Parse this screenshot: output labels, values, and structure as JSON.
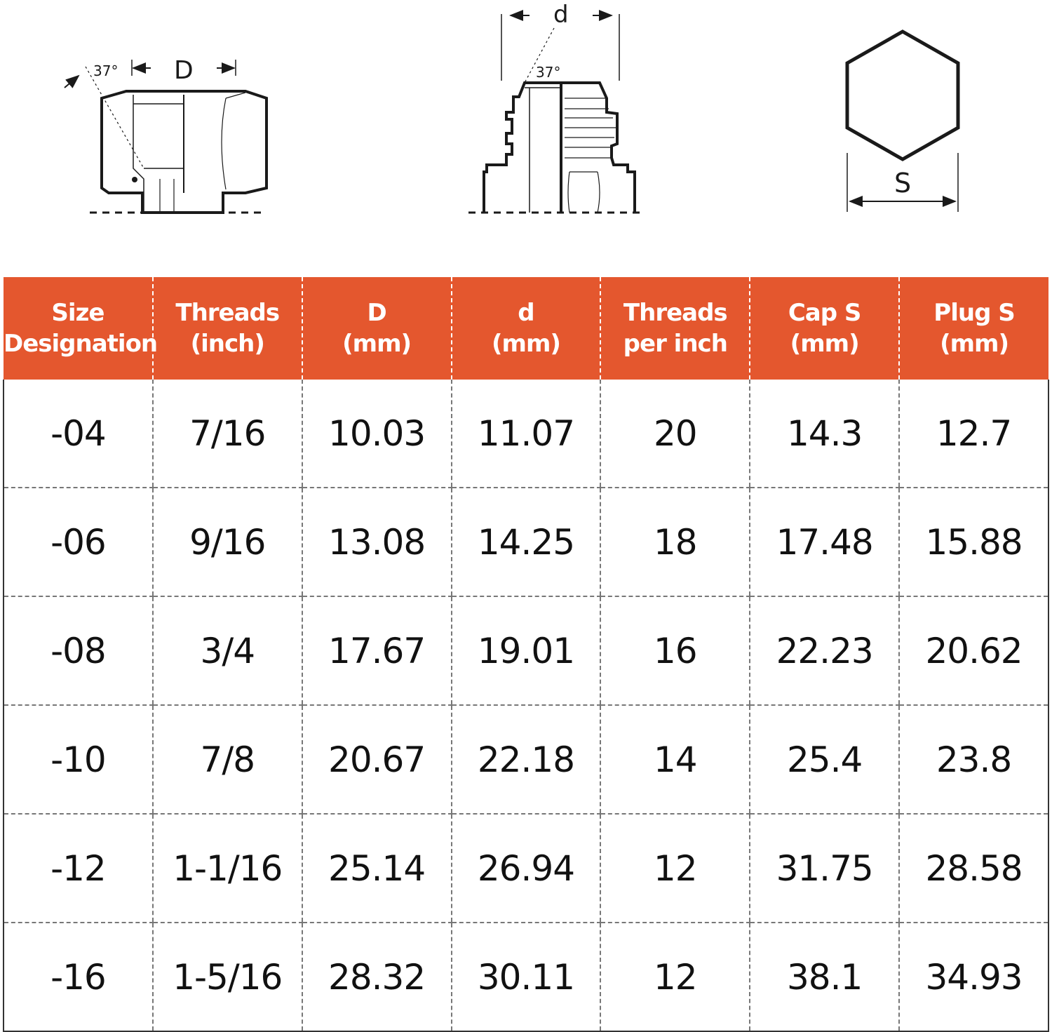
{
  "diagrams": {
    "cap": {
      "angle_label": "37°",
      "dimension_label": "D"
    },
    "plug": {
      "angle_label": "37°",
      "dimension_label": "d"
    },
    "hex": {
      "dimension_label": "S"
    }
  },
  "table": {
    "headers": [
      [
        "Size",
        "Designation"
      ],
      [
        "Threads",
        "(inch)"
      ],
      [
        "D",
        "(mm)"
      ],
      [
        "d",
        "(mm)"
      ],
      [
        "Threads",
        "per inch"
      ],
      [
        "Cap S",
        "(mm)"
      ],
      [
        "Plug S",
        "(mm)"
      ]
    ],
    "rows": [
      [
        "-04",
        "7/16",
        "10.03",
        "11.07",
        "20",
        "14.3",
        "12.7"
      ],
      [
        "-06",
        "9/16",
        "13.08",
        "14.25",
        "18",
        "17.48",
        "15.88"
      ],
      [
        "-08",
        "3/4",
        "17.67",
        "19.01",
        "16",
        "22.23",
        "20.62"
      ],
      [
        "-10",
        "7/8",
        "20.67",
        "22.18",
        "14",
        "25.4",
        "23.8"
      ],
      [
        "-12",
        "1-1/16",
        "25.14",
        "26.94",
        "12",
        "31.75",
        "28.58"
      ],
      [
        "-16",
        "1-5/16",
        "28.32",
        "30.11",
        "12",
        "38.1",
        "34.93"
      ]
    ]
  },
  "colors": {
    "header_background": "#e4572e",
    "header_text": "#ffffff",
    "body_text": "#111111",
    "grid_line": "#777777"
  }
}
